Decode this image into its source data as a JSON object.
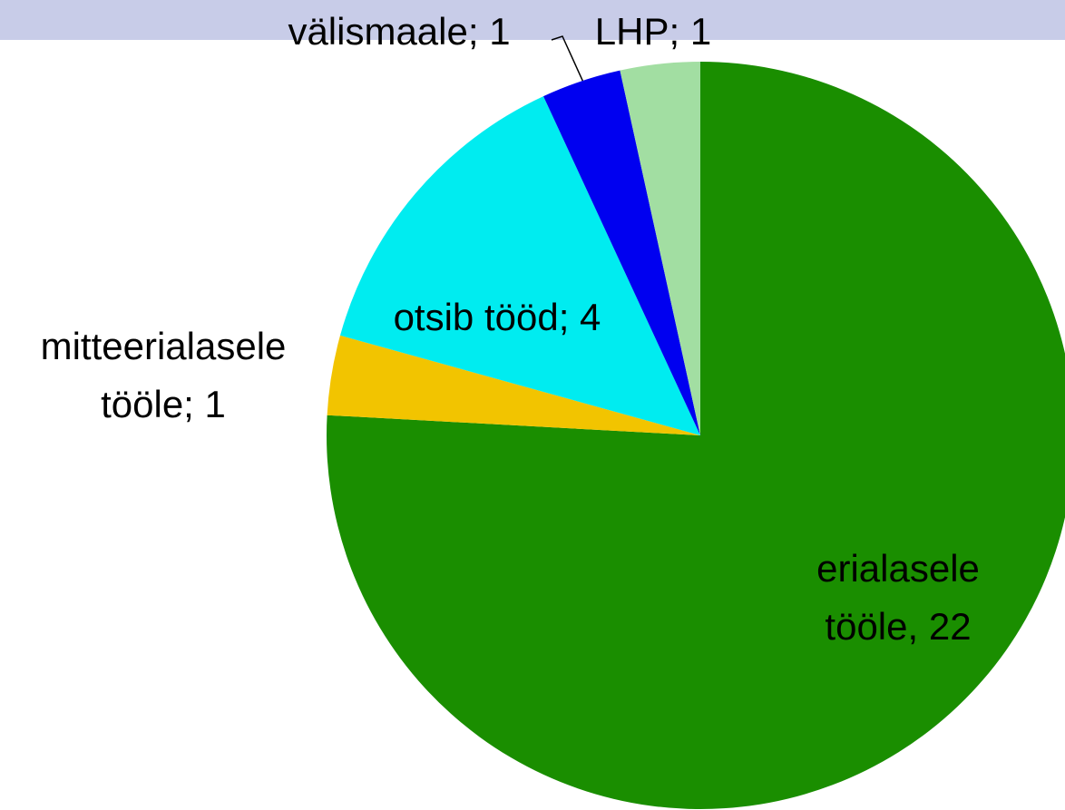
{
  "chart_data": {
    "type": "pie",
    "values": [
      22,
      1,
      4,
      1,
      1
    ],
    "value_labels": [
      [
        "erialasele",
        "tööle, 22"
      ],
      [
        "mitteerialasele",
        "tööle; 1"
      ],
      [
        "otsib tööd; 4"
      ],
      [
        "välismaale; 1"
      ],
      [
        "LHP; 1"
      ]
    ],
    "colors": [
      "#1a8e00",
      "#f2c400",
      "#00ecf0",
      "#0000f0",
      "#a2dea2"
    ],
    "start_angle": 0,
    "direction": "clockwise"
  }
}
